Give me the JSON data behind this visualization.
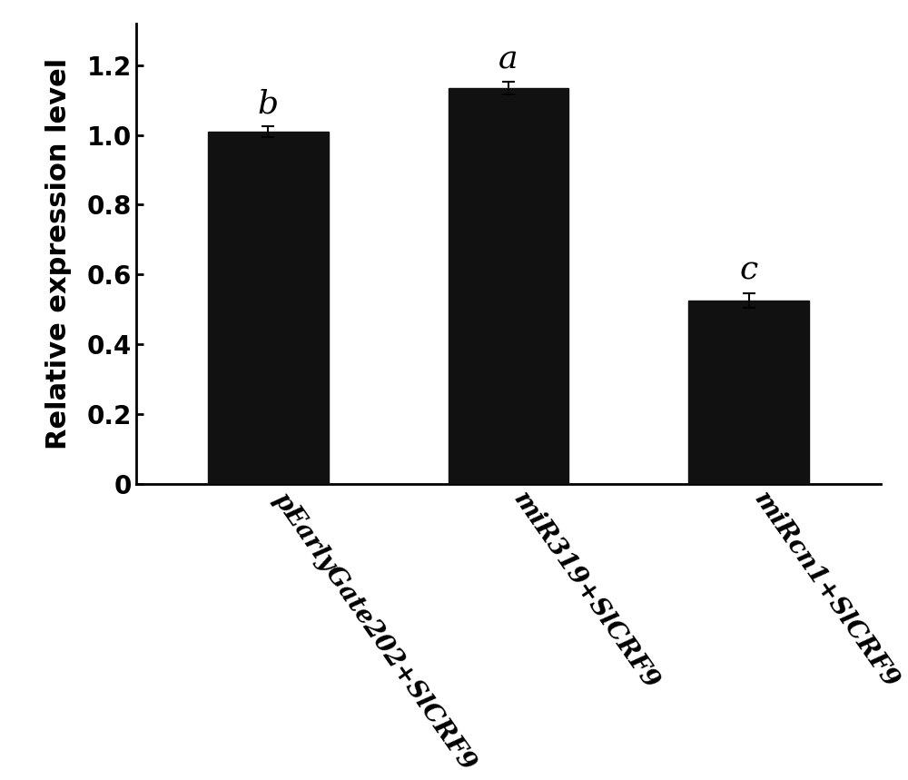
{
  "categories": [
    "pEarlyGate202+SlCRF9",
    "miR319+SlCRF9",
    "miRcn1+SlCRF9"
  ],
  "values": [
    1.01,
    1.135,
    0.525
  ],
  "errors": [
    0.015,
    0.018,
    0.022
  ],
  "labels": [
    "b",
    "a",
    "c"
  ],
  "bar_color": "#111111",
  "bar_width": 0.5,
  "ylabel": "Relative expression level",
  "ylim": [
    0,
    1.32
  ],
  "yticks": [
    0,
    0.2,
    0.4,
    0.6,
    0.8,
    1.0,
    1.2
  ],
  "ylabel_fontsize": 22,
  "tick_fontsize": 20,
  "annotation_fontsize": 26,
  "xtick_fontsize": 20,
  "figsize": [
    10.0,
    8.59
  ],
  "dpi": 100,
  "background_color": "#ffffff",
  "plot_background": "#ffffff"
}
